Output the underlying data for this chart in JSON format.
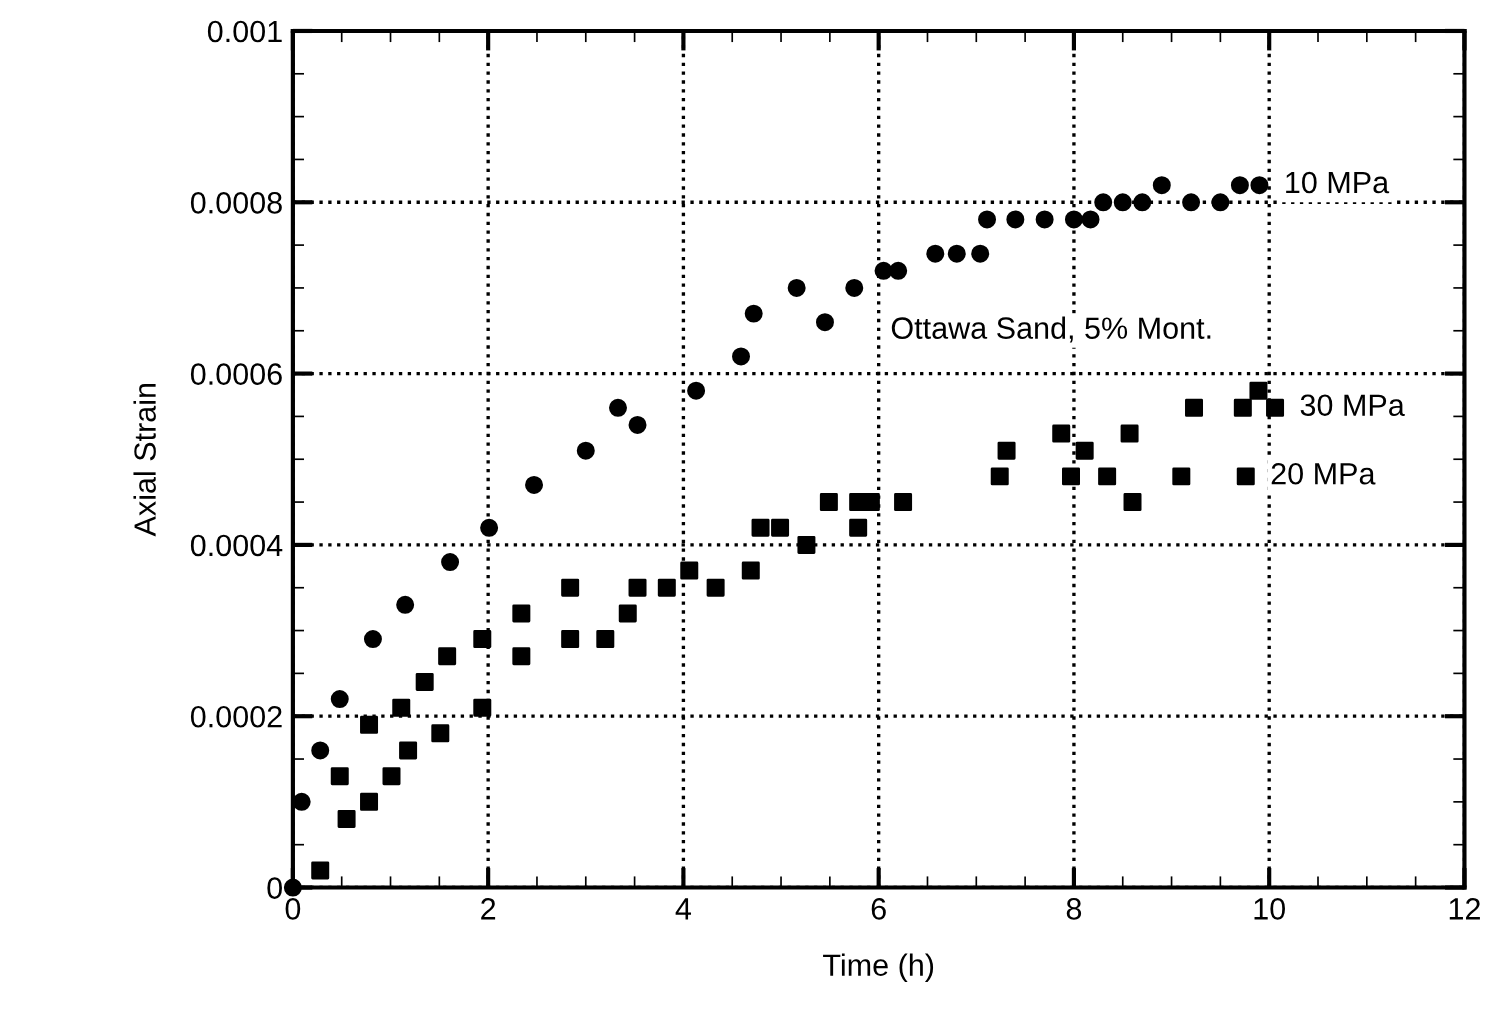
{
  "chart_data": {
    "type": "scatter",
    "xlabel": "Time (h)",
    "ylabel": "Axial Strain",
    "xlim": [
      0,
      12
    ],
    "xticks": [
      0,
      2,
      4,
      6,
      8,
      10,
      12
    ],
    "ylim": [
      0,
      0.001
    ],
    "yticks": [
      0,
      0.0002,
      0.0004,
      0.0006,
      0.0008,
      0.001
    ],
    "grid": true,
    "legend": "right",
    "series": [
      {
        "name": "10 MPa",
        "color": "#000000",
        "marker": "circle",
        "x": [
          0,
          0.09,
          0.28,
          0.48,
          0.82,
          1.15,
          1.61,
          2.01,
          2.47,
          3.0,
          3.33,
          3.53,
          4.13,
          4.59,
          4.72,
          5.16,
          5.45,
          5.75,
          6.05,
          6.2,
          6.58,
          6.8,
          7.04,
          7.11,
          7.4,
          7.7,
          8.0,
          8.17,
          8.3,
          8.5,
          8.7,
          8.9,
          9.2,
          9.5,
          9.7,
          9.9
        ],
        "values": [
          0,
          0.0001,
          0.00016,
          0.00022,
          0.00029,
          0.00033,
          0.00038,
          0.00042,
          0.00047,
          0.00051,
          0.00056,
          0.00054,
          0.00058,
          0.00062,
          0.00067,
          0.0007,
          0.00066,
          0.0007,
          0.00072,
          0.00072,
          0.00074,
          0.00074,
          0.00074,
          0.00078,
          0.00078,
          0.00078,
          0.00078,
          0.00078,
          0.0008,
          0.0008,
          0.0008,
          0.00082,
          0.0008,
          0.0008,
          0.00082,
          0.00082
        ]
      },
      {
        "name": "20 MPa",
        "color": "#000000",
        "marker": "square",
        "x": [
          0.48,
          0.78,
          1.11,
          1.35,
          1.58,
          1.94,
          2.34,
          2.84,
          3.53,
          4.06,
          4.79,
          4.99,
          5.49,
          5.79,
          5.92,
          7.24,
          7.97,
          8.34,
          8.6,
          9.1,
          9.76
        ],
        "values": [
          0.00013,
          0.00019,
          0.00021,
          0.00024,
          0.00027,
          0.00029,
          0.00032,
          0.00035,
          0.00035,
          0.00037,
          0.00042,
          0.00042,
          0.00045,
          0.00045,
          0.00045,
          0.00048,
          0.00048,
          0.00048,
          0.00045,
          0.00048,
          0.00048
        ]
      },
      {
        "name": "30 MPa",
        "color": "#000000",
        "marker": "square",
        "x": [
          0.28,
          0.55,
          0.78,
          1.01,
          1.18,
          1.51,
          1.94,
          2.34,
          2.84,
          3.2,
          3.43,
          3.83,
          4.33,
          4.69,
          5.26,
          5.79,
          6.25,
          7.31,
          7.87,
          8.11,
          8.57,
          9.23,
          9.73,
          9.89,
          10.06
        ],
        "values": [
          2e-05,
          8e-05,
          0.0001,
          0.00013,
          0.00016,
          0.00018,
          0.00021,
          0.00027,
          0.00029,
          0.00029,
          0.00032,
          0.00035,
          0.00035,
          0.00037,
          0.0004,
          0.00042,
          0.00045,
          0.00051,
          0.00053,
          0.00051,
          0.00053,
          0.00056,
          0.00056,
          0.00058,
          0.00056
        ]
      }
    ],
    "annotations": [
      "Ottawa Sand, 5% Mont."
    ]
  }
}
